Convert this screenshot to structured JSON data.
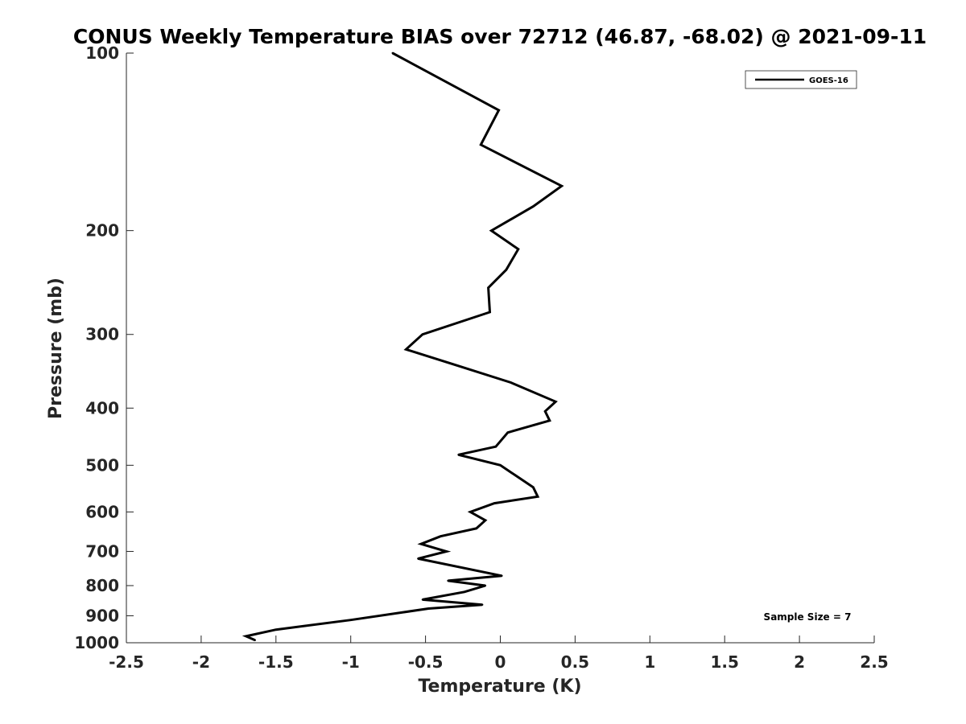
{
  "chart_data": {
    "type": "line",
    "title": "CONUS Weekly Temperature BIAS over 72712 (46.87, -68.02) @ 2021-09-11",
    "xlabel": "Temperature (K)",
    "ylabel": "Pressure (mb)",
    "xlim": [
      -2.5,
      2.5
    ],
    "ylim": [
      100,
      1000
    ],
    "y_scale": "log",
    "y_reversed": true,
    "x_ticks": [
      -2.5,
      -2,
      -1.5,
      -1,
      -0.5,
      0,
      0.5,
      1,
      1.5,
      2,
      2.5
    ],
    "x_tick_labels": [
      "-2.5",
      "-2",
      "-1.5",
      "-1",
      "-0.5",
      "0",
      "0.5",
      "1",
      "1.5",
      "2",
      "2.5"
    ],
    "y_ticks": [
      100,
      200,
      300,
      400,
      500,
      600,
      700,
      800,
      900,
      1000
    ],
    "y_tick_labels": [
      "100",
      "200",
      "300",
      "400",
      "500",
      "600",
      "700",
      "800",
      "900",
      "1000"
    ],
    "grid": false,
    "legend_position": "top-right",
    "annotation": "Sample Size = 7",
    "line_color": "#000000",
    "series": [
      {
        "name": "GOES-16",
        "points": [
          {
            "x": -0.72,
            "p": 100
          },
          {
            "x": -0.01,
            "p": 125
          },
          {
            "x": -0.13,
            "p": 143
          },
          {
            "x": 0.41,
            "p": 168
          },
          {
            "x": 0.22,
            "p": 182
          },
          {
            "x": -0.06,
            "p": 200
          },
          {
            "x": 0.12,
            "p": 215
          },
          {
            "x": 0.04,
            "p": 233
          },
          {
            "x": -0.08,
            "p": 250
          },
          {
            "x": -0.07,
            "p": 275
          },
          {
            "x": -0.52,
            "p": 300
          },
          {
            "x": -0.63,
            "p": 318
          },
          {
            "x": -0.3,
            "p": 338
          },
          {
            "x": 0.07,
            "p": 362
          },
          {
            "x": 0.37,
            "p": 390
          },
          {
            "x": 0.3,
            "p": 405
          },
          {
            "x": 0.33,
            "p": 420
          },
          {
            "x": 0.05,
            "p": 440
          },
          {
            "x": -0.03,
            "p": 465
          },
          {
            "x": -0.28,
            "p": 480
          },
          {
            "x": 0.0,
            "p": 500
          },
          {
            "x": 0.1,
            "p": 520
          },
          {
            "x": 0.22,
            "p": 545
          },
          {
            "x": 0.25,
            "p": 565
          },
          {
            "x": -0.04,
            "p": 580
          },
          {
            "x": -0.2,
            "p": 600
          },
          {
            "x": -0.1,
            "p": 620
          },
          {
            "x": -0.16,
            "p": 640
          },
          {
            "x": -0.4,
            "p": 660
          },
          {
            "x": -0.53,
            "p": 680
          },
          {
            "x": -0.36,
            "p": 700
          },
          {
            "x": -0.55,
            "p": 720
          },
          {
            "x": 0.01,
            "p": 770
          },
          {
            "x": -0.35,
            "p": 785
          },
          {
            "x": -0.1,
            "p": 800
          },
          {
            "x": -0.24,
            "p": 820
          },
          {
            "x": -0.52,
            "p": 845
          },
          {
            "x": -0.12,
            "p": 862
          },
          {
            "x": -0.48,
            "p": 875
          },
          {
            "x": -1.0,
            "p": 915
          },
          {
            "x": -1.5,
            "p": 950
          },
          {
            "x": -1.7,
            "p": 975
          },
          {
            "x": -1.64,
            "p": 990
          }
        ]
      }
    ]
  }
}
